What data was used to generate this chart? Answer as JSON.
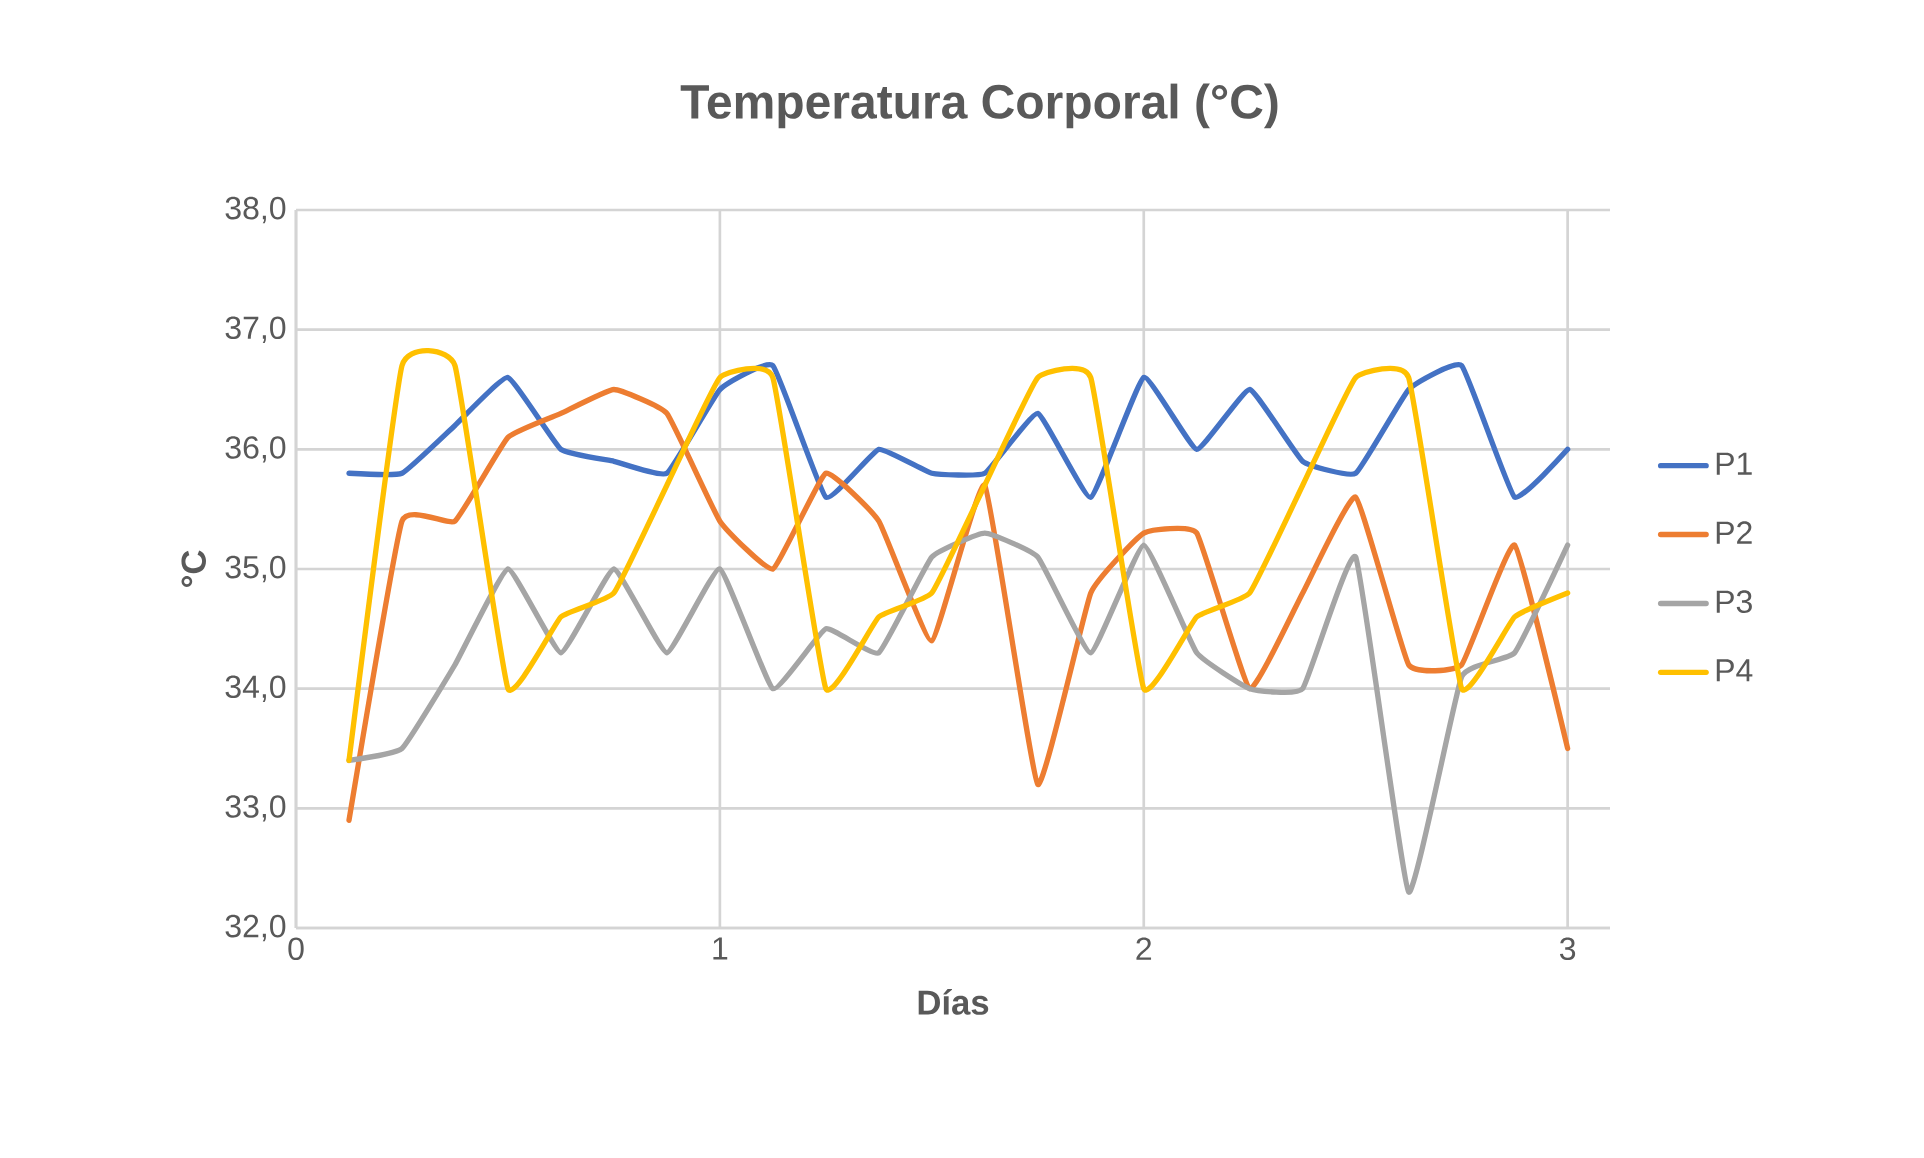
{
  "chart_data": {
    "type": "line",
    "title": "Temperatura Corporal (°C)",
    "xlabel": "Días",
    "ylabel": "°C",
    "x": [
      0.125,
      0.25,
      0.375,
      0.5,
      0.625,
      0.75,
      0.875,
      1,
      1.125,
      1.25,
      1.375,
      1.5,
      1.625,
      1.75,
      1.875,
      2,
      2.125,
      2.25,
      2.375,
      2.5,
      2.625,
      2.75,
      2.875,
      3
    ],
    "series": [
      {
        "name": "P1",
        "color": "#4472c4",
        "values": [
          35.8,
          35.8,
          36.2,
          36.6,
          36.0,
          35.9,
          35.8,
          36.5,
          36.7,
          35.6,
          36.0,
          35.8,
          35.8,
          36.3,
          35.6,
          36.6,
          36.0,
          36.5,
          35.9,
          35.8,
          36.5,
          36.7,
          35.6,
          36.0
        ]
      },
      {
        "name": "P2",
        "color": "#ed7d31",
        "values": [
          32.9,
          35.4,
          35.4,
          36.1,
          36.3,
          36.5,
          36.3,
          35.4,
          35.0,
          35.8,
          35.4,
          34.4,
          35.7,
          33.2,
          34.8,
          35.3,
          35.3,
          34.0,
          34.8,
          35.6,
          34.2,
          34.2,
          35.2,
          33.5
        ]
      },
      {
        "name": "P3",
        "color": "#a5a5a5",
        "values": [
          33.4,
          33.5,
          34.2,
          35.0,
          34.3,
          35.0,
          34.3,
          35.0,
          34.0,
          34.5,
          34.3,
          35.1,
          35.3,
          35.1,
          34.3,
          35.2,
          34.3,
          34.0,
          34.0,
          35.1,
          32.3,
          34.1,
          34.3,
          35.2
        ]
      },
      {
        "name": "P4",
        "color": "#ffc000",
        "values": [
          33.4,
          36.7,
          36.7,
          34.0,
          34.6,
          34.8,
          35.7,
          36.6,
          36.6,
          34.0,
          34.6,
          34.8,
          35.7,
          36.6,
          36.6,
          34.0,
          34.6,
          34.8,
          35.7,
          36.6,
          36.6,
          34.0,
          34.6,
          34.8
        ]
      }
    ],
    "xlim": [
      0,
      3.1
    ],
    "xticks": [
      0,
      1,
      2,
      3
    ],
    "ylim": [
      32,
      38
    ],
    "yticks": [
      {
        "value": 32,
        "label": "32,0"
      },
      {
        "value": 33,
        "label": "33,0"
      },
      {
        "value": 34,
        "label": "34,0"
      },
      {
        "value": 35,
        "label": "35,0"
      },
      {
        "value": 36,
        "label": "36,0"
      },
      {
        "value": 37,
        "label": "37,0"
      },
      {
        "value": 38,
        "label": "38,0"
      }
    ],
    "grid": true,
    "legend": "right",
    "marker": "none",
    "line_style": "solid"
  }
}
